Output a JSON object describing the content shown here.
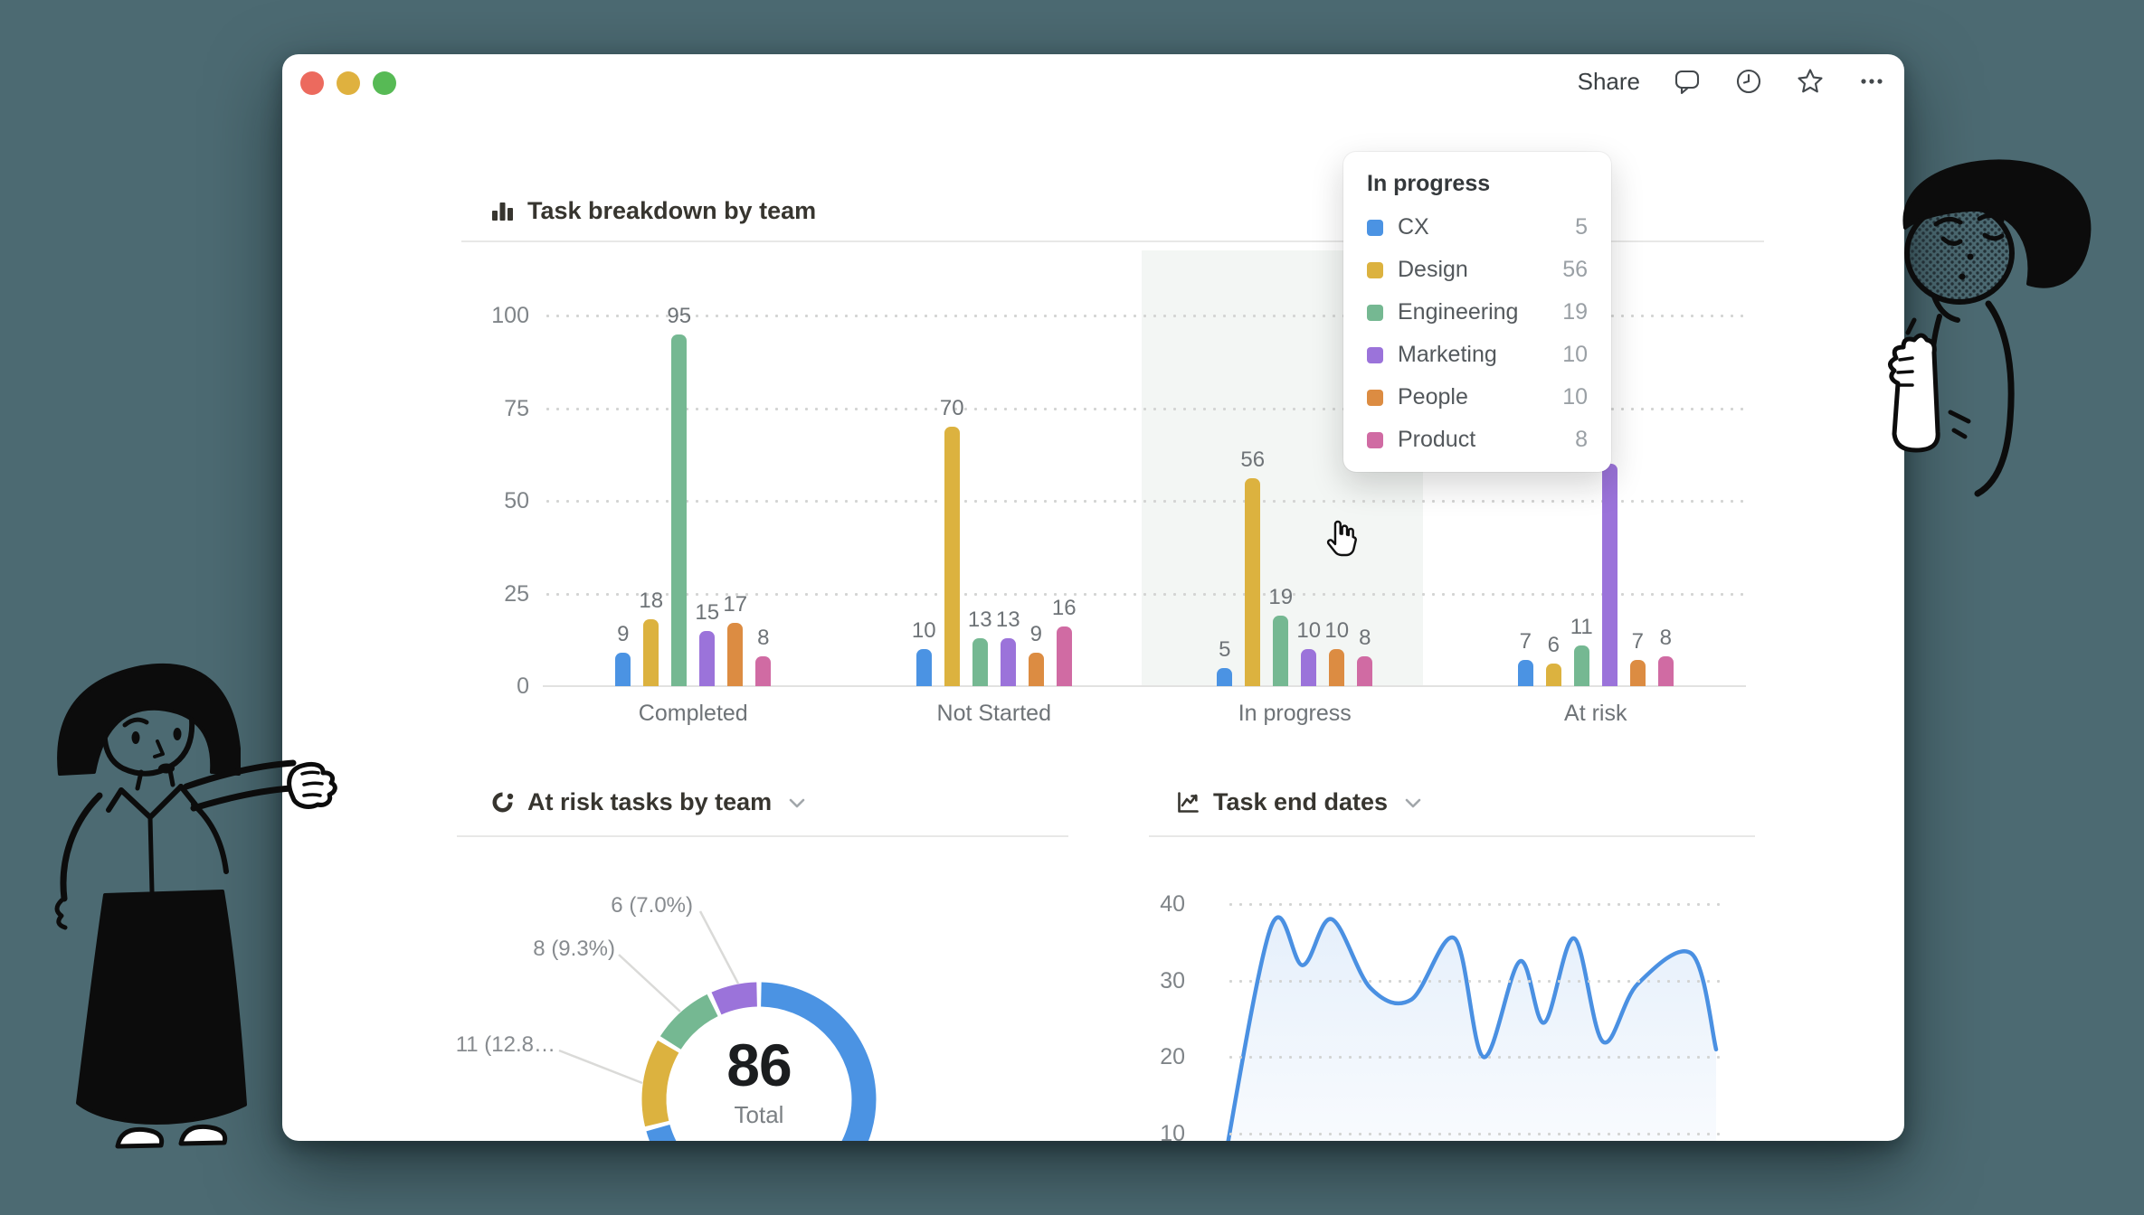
{
  "page": {
    "background_color": "#4c6a72",
    "window_color": "#ffffff"
  },
  "titlebar": {
    "share_label": "Share",
    "traffic_lights": [
      {
        "name": "close",
        "color": "#ec6a5e"
      },
      {
        "name": "minimize",
        "color": "#dfb13f"
      },
      {
        "name": "zoom",
        "color": "#57ba55"
      }
    ],
    "icons": [
      "comment-icon",
      "clock-icon",
      "star-icon",
      "ellipsis-icon"
    ]
  },
  "teams": [
    {
      "name": "CX",
      "color": "#4b93e3"
    },
    {
      "name": "Design",
      "color": "#dcb23f"
    },
    {
      "name": "Engineering",
      "color": "#75b892"
    },
    {
      "name": "Marketing",
      "color": "#9b73da"
    },
    {
      "name": "People",
      "color": "#dc8c42"
    },
    {
      "name": "Product",
      "color": "#d06ba3"
    }
  ],
  "bar_chart": {
    "title": "Task breakdown by team"
  },
  "tooltip": {
    "title": "In progress",
    "rows": [
      {
        "label": "CX",
        "value": "5",
        "color": "#4b93e3"
      },
      {
        "label": "Design",
        "value": "56",
        "color": "#dcb23f"
      },
      {
        "label": "Engineering",
        "value": "19",
        "color": "#75b892"
      },
      {
        "label": "Marketing",
        "value": "10",
        "color": "#9b73da"
      },
      {
        "label": "People",
        "value": "10",
        "color": "#dc8c42"
      },
      {
        "label": "Product",
        "value": "8",
        "color": "#d06ba3"
      }
    ]
  },
  "donut_chart": {
    "title": "At risk tasks by team",
    "center_value": "86",
    "center_label": "Total",
    "callouts": [
      "6 (7.0%)",
      "8 (9.3%)",
      "11 (12.8…"
    ]
  },
  "line_chart": {
    "title": "Task end dates"
  },
  "chart_data": [
    {
      "type": "bar",
      "title": "Task breakdown by team",
      "categories": [
        "Completed",
        "Not Started",
        "In progress",
        "At risk"
      ],
      "series": [
        {
          "name": "CX",
          "color": "#4b93e3",
          "values": [
            9,
            10,
            5,
            7
          ]
        },
        {
          "name": "Design",
          "color": "#dcb23f",
          "values": [
            18,
            70,
            56,
            6
          ]
        },
        {
          "name": "Engineering",
          "color": "#75b892",
          "values": [
            95,
            13,
            19,
            11
          ]
        },
        {
          "name": "Marketing",
          "color": "#9b73da",
          "values": [
            15,
            13,
            10,
            null
          ]
        },
        {
          "name": "People",
          "color": "#dc8c42",
          "values": [
            17,
            9,
            10,
            7
          ]
        },
        {
          "name": "Product",
          "color": "#d06ba3",
          "values": [
            8,
            16,
            8,
            8
          ]
        }
      ],
      "ylim": [
        0,
        100
      ],
      "yticks": [
        0,
        25,
        50,
        75,
        100
      ],
      "grid": "dotted-horizontal",
      "highlighted_category": "In progress",
      "hidden_value_note": "At risk / Marketing bar top is covered by the tooltip; visible height ~60",
      "hidden_render_height": 60
    },
    {
      "type": "pie",
      "donut": true,
      "title": "At risk tasks by team",
      "total": 86,
      "center_label": "Total",
      "slices": [
        {
          "value": 61,
          "color": "#4b93e3",
          "label": null
        },
        {
          "value": 11,
          "color": "#dcb23f",
          "label": "11 (12.8…"
        },
        {
          "value": 8,
          "color": "#75b892",
          "label": "8 (9.3%)"
        },
        {
          "value": 6,
          "color": "#9b73da",
          "label": "6 (7.0%)"
        }
      ]
    },
    {
      "type": "area",
      "title": "Task end dates",
      "yticks": [
        10,
        20,
        30,
        40
      ],
      "x_labels_visible": false,
      "line_color": "#4a90e2",
      "y_values": [
        4,
        37,
        32,
        38,
        29,
        27.5,
        35.5,
        20,
        32.5,
        24.5,
        35.5,
        22,
        29.5,
        33.5,
        21
      ]
    }
  ]
}
